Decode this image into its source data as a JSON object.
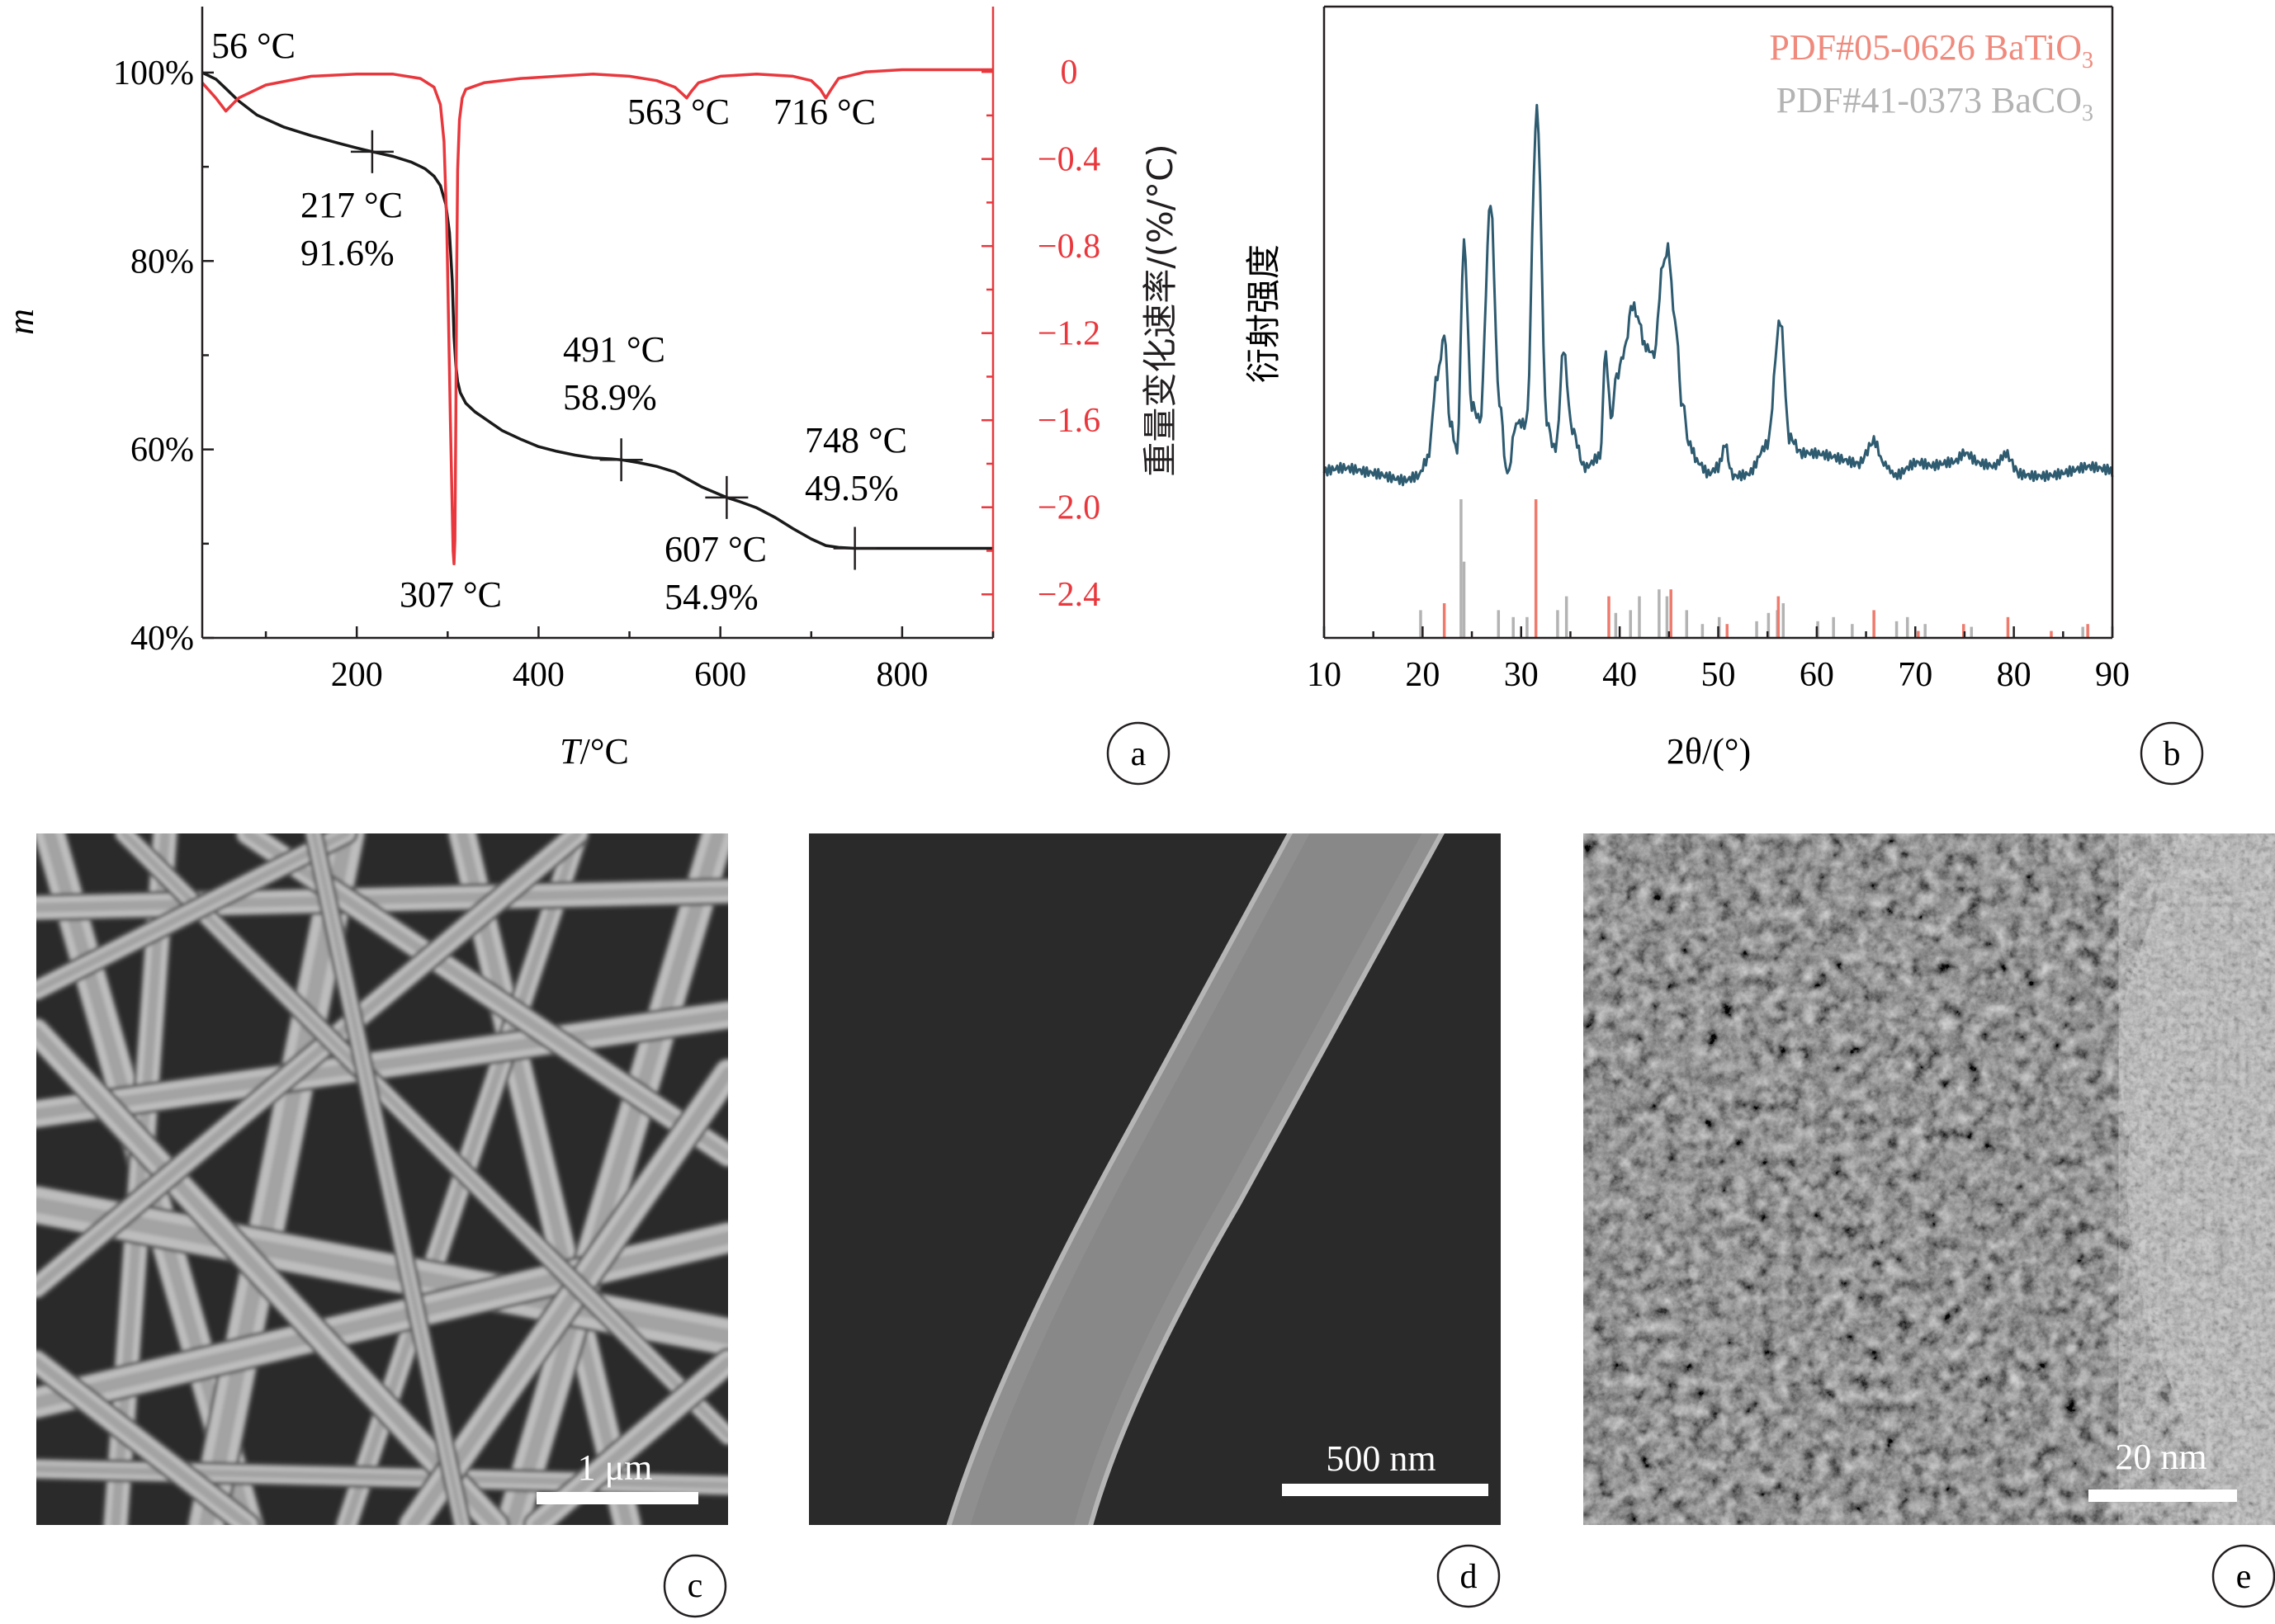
{
  "panels": {
    "a": {
      "label": "a",
      "chart_data": {
        "type": "line",
        "xlabel_italic": "T",
        "xlabel_unit": "/°C",
        "ylabel": "m",
        "y2label": "重量变化速率/(%/°C)",
        "xlim": [
          30,
          900
        ],
        "ylim": [
          40,
          107
        ],
        "y2lim": [
          -2.6,
          0.3
        ],
        "xticks": [
          200,
          400,
          600,
          800
        ],
        "yticks": [
          {
            "value": 40,
            "label": "40%"
          },
          {
            "value": 60,
            "label": "60%"
          },
          {
            "value": 80,
            "label": "80%"
          },
          {
            "value": 100,
            "label": "100%"
          }
        ],
        "y2ticks": [
          {
            "value": 0,
            "label": "0"
          },
          {
            "value": -0.4,
            "label": "−0.4"
          },
          {
            "value": -0.8,
            "label": "−0.8"
          },
          {
            "value": -1.2,
            "label": "−1.2"
          },
          {
            "value": -1.6,
            "label": "−1.6"
          },
          {
            "value": -2.0,
            "label": "−2.0"
          },
          {
            "value": -2.4,
            "label": "−2.4"
          }
        ],
        "series": [
          {
            "axis": "left",
            "color": "#1a1a1a",
            "x": [
              30,
              45,
              56,
              70,
              90,
              120,
              150,
              180,
              200,
              217,
              240,
              260,
              275,
              285,
              292,
              298,
              302,
              305,
              307,
              309,
              311,
              314,
              320,
              330,
              345,
              360,
              380,
              400,
              420,
              440,
              460,
              480,
              491,
              510,
              530,
              550,
              565,
              580,
              595,
              607,
              620,
              640,
              660,
              680,
              700,
              716,
              730,
              748,
              780,
              820,
              860,
              900
            ],
            "y": [
              100,
              99.3,
              98.3,
              97,
              95.5,
              94.2,
              93.3,
              92.5,
              92,
              91.6,
              91.1,
              90.5,
              89.8,
              89,
              88,
              86,
              83,
              78,
              72,
              69,
              67.2,
              66,
              64.9,
              64,
              63,
              62,
              61.1,
              60.3,
              59.8,
              59.4,
              59.1,
              59,
              58.9,
              58.6,
              58.2,
              57.6,
              56.8,
              56,
              55.4,
              54.9,
              54.5,
              53.8,
              52.8,
              51.6,
              50.5,
              49.8,
              49.6,
              49.5,
              49.5,
              49.5,
              49.5,
              49.5
            ]
          },
          {
            "axis": "right",
            "color": "#e8383d",
            "x": [
              30,
              45,
              56,
              70,
              100,
              150,
              200,
              240,
              270,
              285,
              292,
              296,
              299,
              301,
              303,
              305,
              306,
              307,
              308,
              309,
              310,
              311,
              313,
              316,
              320,
              340,
              380,
              420,
              460,
              500,
              530,
              550,
              558,
              563,
              568,
              576,
              600,
              640,
              680,
              700,
              710,
              716,
              722,
              730,
              760,
              800,
              850,
              900
            ],
            "y": [
              -0.05,
              -0.12,
              -0.18,
              -0.12,
              -0.06,
              -0.02,
              -0.01,
              -0.01,
              -0.03,
              -0.07,
              -0.15,
              -0.32,
              -0.7,
              -1.15,
              -1.6,
              -2.0,
              -2.2,
              -2.26,
              -2.15,
              -1.6,
              -0.9,
              -0.45,
              -0.22,
              -0.12,
              -0.08,
              -0.05,
              -0.03,
              -0.02,
              -0.01,
              -0.02,
              -0.04,
              -0.07,
              -0.1,
              -0.12,
              -0.09,
              -0.05,
              -0.02,
              -0.01,
              -0.02,
              -0.04,
              -0.08,
              -0.12,
              -0.08,
              -0.03,
              0,
              0.01,
              0.01,
              0.01
            ]
          }
        ],
        "markers": [
          {
            "x": 217,
            "y": 91.6
          },
          {
            "x": 491,
            "y": 58.9
          },
          {
            "x": 607,
            "y": 54.9
          },
          {
            "x": 748,
            "y": 49.5
          }
        ],
        "annotations": [
          {
            "line1": "56 °C",
            "line2": ""
          },
          {
            "line1": "563 °C",
            "line2": ""
          },
          {
            "line1": "716 °C",
            "line2": ""
          },
          {
            "line1": "217 °C",
            "line2": "91.6%"
          },
          {
            "line1": "491 °C",
            "line2": "58.9%"
          },
          {
            "line1": "748 °C",
            "line2": "49.5%"
          },
          {
            "line1": "607 °C",
            "line2": "54.9%"
          },
          {
            "line1": "307 °C",
            "line2": ""
          }
        ]
      }
    },
    "b": {
      "label": "b",
      "chart_data": {
        "type": "line",
        "xlabel": "2θ/(°)",
        "ylabel": "衍射强度",
        "xlim": [
          10,
          90
        ],
        "xticks": [
          10,
          20,
          30,
          40,
          50,
          60,
          70,
          80,
          90
        ],
        "legend": [
          {
            "text": "PDF#05-0626 BaTiO",
            "sub": "3",
            "color": "#ef8a7d"
          },
          {
            "text": "PDF#41-0373 BaCO",
            "sub": "3",
            "color": "#b3b3b3"
          }
        ],
        "legend_position": "top-right",
        "series": [
          {
            "name": "",
            "color": "#2e5b70",
            "x": [
              10,
              12,
              14,
              16,
              18,
              19.5,
              20.5,
              21.5,
              22.2,
              22.8,
              23.5,
              24.2,
              25,
              25.8,
              26.9,
              27.8,
              28.6,
              29.5,
              30.5,
              31.6,
              32.6,
              33.5,
              34.3,
              35.2,
              36.5,
              38,
              38.6,
              39.1,
              39.7,
              40.5,
              41.3,
              42,
              42.5,
              43.5,
              44.4,
              44.9,
              45.6,
              46.4,
              47,
              48,
              49,
              50,
              50.7,
              51.5,
              53,
              55,
              56.3,
              57.2,
              58.5,
              60,
              62,
              64,
              65.8,
              66.8,
              68,
              70,
              72,
              74,
              75,
              76.5,
              78,
              79.2,
              80.5,
              82,
              83.5,
              85,
              87,
              90
            ],
            "y": [
              0,
              0.2,
              0.1,
              0.3,
              0.3,
              1,
              3,
              13,
              18,
              6,
              3,
              29,
              8,
              6,
              34,
              9,
              1,
              6,
              6,
              45,
              7,
              4,
              16,
              6,
              2,
              3,
              14,
              7,
              13,
              15,
              20,
              18,
              15,
              14,
              26,
              28,
              20,
              8,
              4,
              2,
              1,
              2,
              4,
              1,
              1,
              4,
              18,
              5,
              2,
              2,
              2,
              2,
              5,
              2,
              1,
              2,
              1,
              1,
              2,
              1,
              1,
              2,
              1,
              1,
              1,
              1,
              1,
              0
            ]
          }
        ],
        "reference_sticks": [
          {
            "name": "BaTiO3",
            "color": "#ef7a6c",
            "positions": [
              22.2,
              31.5,
              38.9,
              45.2,
              50.9,
              56.1,
              65.8,
              70.3,
              74.9,
              79.4,
              83.8,
              87.5
            ],
            "heights": [
              25,
              100,
              30,
              35,
              10,
              30,
              20,
              5,
              10,
              15,
              5,
              10
            ]
          },
          {
            "name": "BaCO3",
            "color": "#b3b3b3",
            "positions": [
              19.8,
              23.9,
              24.2,
              27.7,
              29.2,
              30.6,
              33.7,
              34.6,
              39.6,
              41.1,
              42.0,
              44.0,
              44.8,
              46.8,
              48.4,
              50.1,
              53.9,
              55.1,
              56.0,
              56.6,
              60.1,
              61.7,
              63.6,
              68.1,
              69.2,
              71.0,
              75.7,
              87.0
            ],
            "heights": [
              20,
              100,
              55,
              20,
              15,
              15,
              20,
              30,
              18,
              20,
              30,
              35,
              30,
              20,
              10,
              15,
              12,
              18,
              20,
              25,
              12,
              15,
              10,
              12,
              15,
              10,
              8,
              8
            ]
          }
        ]
      }
    },
    "c": {
      "label": "c",
      "scalebar": "1 μm"
    },
    "d": {
      "label": "d",
      "scalebar": "500 nm"
    },
    "e": {
      "label": "e",
      "scalebar": "20 nm"
    }
  }
}
